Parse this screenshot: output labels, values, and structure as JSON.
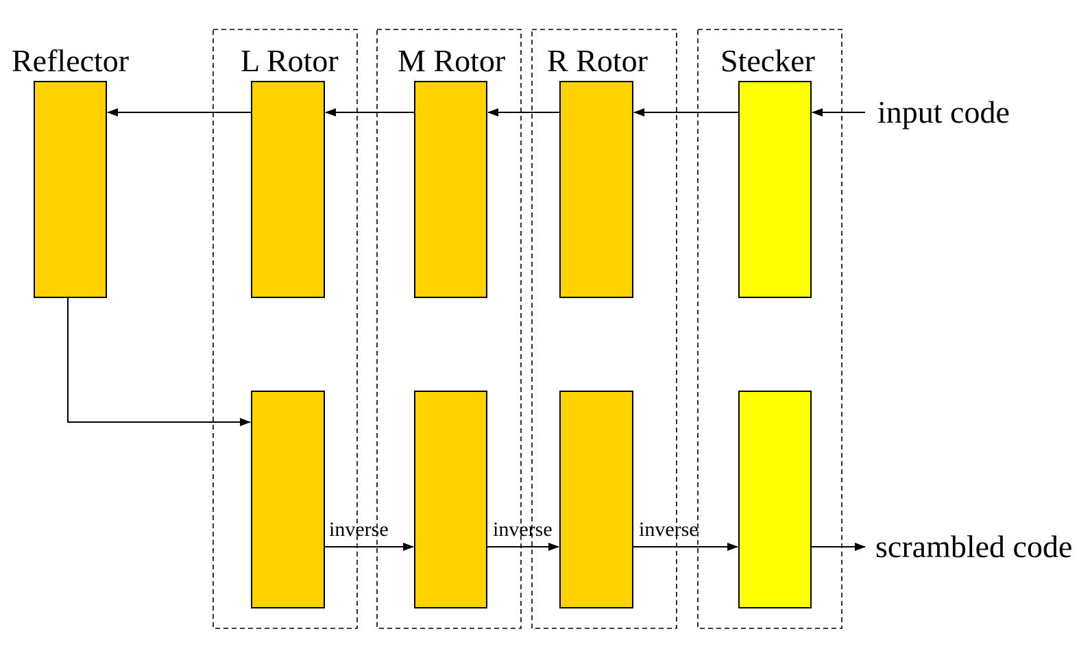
{
  "colors": {
    "rotor_fill": "#FFD200",
    "stecker_fill": "#FFFF00",
    "line": "#000000"
  },
  "labels": {
    "reflector": "Reflector",
    "l_rotor": "L Rotor",
    "m_rotor": "M Rotor",
    "r_rotor": "R Rotor",
    "stecker": "Stecker",
    "input": "input code",
    "output": "scrambled code",
    "inverse_1": "inverse",
    "inverse_2": "inverse",
    "inverse_3": "inverse"
  }
}
